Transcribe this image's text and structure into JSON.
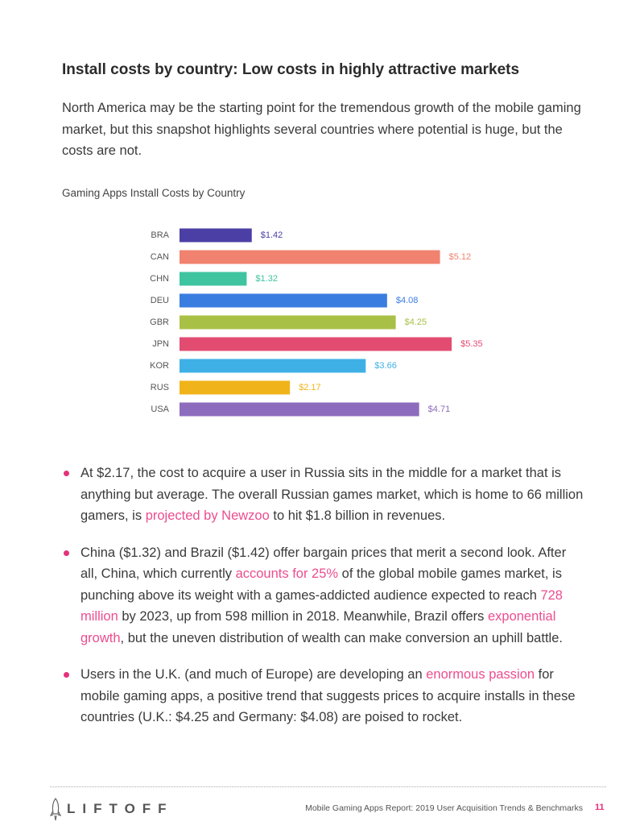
{
  "heading": "Install costs by country: Low costs in highly attractive markets",
  "intro": "North America may be the starting point for the tremendous growth of the mobile gaming market, but this snapshot highlights several countries where potential is huge, but the costs are not.",
  "chart_data": {
    "type": "bar",
    "orientation": "horizontal",
    "title": "Gaming Apps Install Costs by Country",
    "categories": [
      "BRA",
      "CAN",
      "CHN",
      "DEU",
      "GBR",
      "JPN",
      "KOR",
      "RUS",
      "USA"
    ],
    "values": [
      1.42,
      5.12,
      1.32,
      4.08,
      4.25,
      5.35,
      3.66,
      2.17,
      4.71
    ],
    "value_labels": [
      "$1.42",
      "$5.12",
      "$1.32",
      "$4.08",
      "$4.25",
      "$5.35",
      "$3.66",
      "$2.17",
      "$4.71"
    ],
    "colors": [
      "#4b3fa6",
      "#f0826f",
      "#3fc4a0",
      "#3a7de0",
      "#a8c046",
      "#e34c71",
      "#3fb0e6",
      "#f0b41a",
      "#8d6cbd"
    ]
  },
  "bullets": [
    {
      "segments": [
        {
          "text": "At $2.17, the cost to acquire a user in Russia sits in the middle for a market that is anything but average. The overall Russian games market, which is home to 66 million gamers, is ",
          "link": false
        },
        {
          "text": "projected by Newzoo",
          "link": true
        },
        {
          "text": " to hit $1.8 billion in revenues.",
          "link": false
        }
      ]
    },
    {
      "segments": [
        {
          "text": "China ($1.32) and Brazil ($1.42) offer bargain prices that merit a second look. After all, China, which currently ",
          "link": false
        },
        {
          "text": "accounts for 25%",
          "link": true
        },
        {
          "text": " of the global mobile games market, is punching above its weight with a games-addicted audience expected to reach ",
          "link": false
        },
        {
          "text": "728 million",
          "link": true
        },
        {
          "text": " by 2023, up from 598 million in 2018. Meanwhile, Brazil offers ",
          "link": false
        },
        {
          "text": "exponential growth",
          "link": true
        },
        {
          "text": ", but the uneven distribution of wealth can make conversion an uphill battle.",
          "link": false
        }
      ]
    },
    {
      "segments": [
        {
          "text": "Users in the U.K. (and much of Europe) are developing an ",
          "link": false
        },
        {
          "text": "enormous passion",
          "link": true
        },
        {
          "text": " for mobile gaming apps, a positive trend that suggests prices to acquire installs in these countries (U.K.: $4.25 and Germany: $4.08) are poised to rocket.",
          "link": false
        }
      ]
    }
  ],
  "footer": {
    "logo": "LIFTOFF",
    "report": "Mobile Gaming Apps Report: 2019 User Acquisition Trends & Benchmarks",
    "page": "11"
  }
}
